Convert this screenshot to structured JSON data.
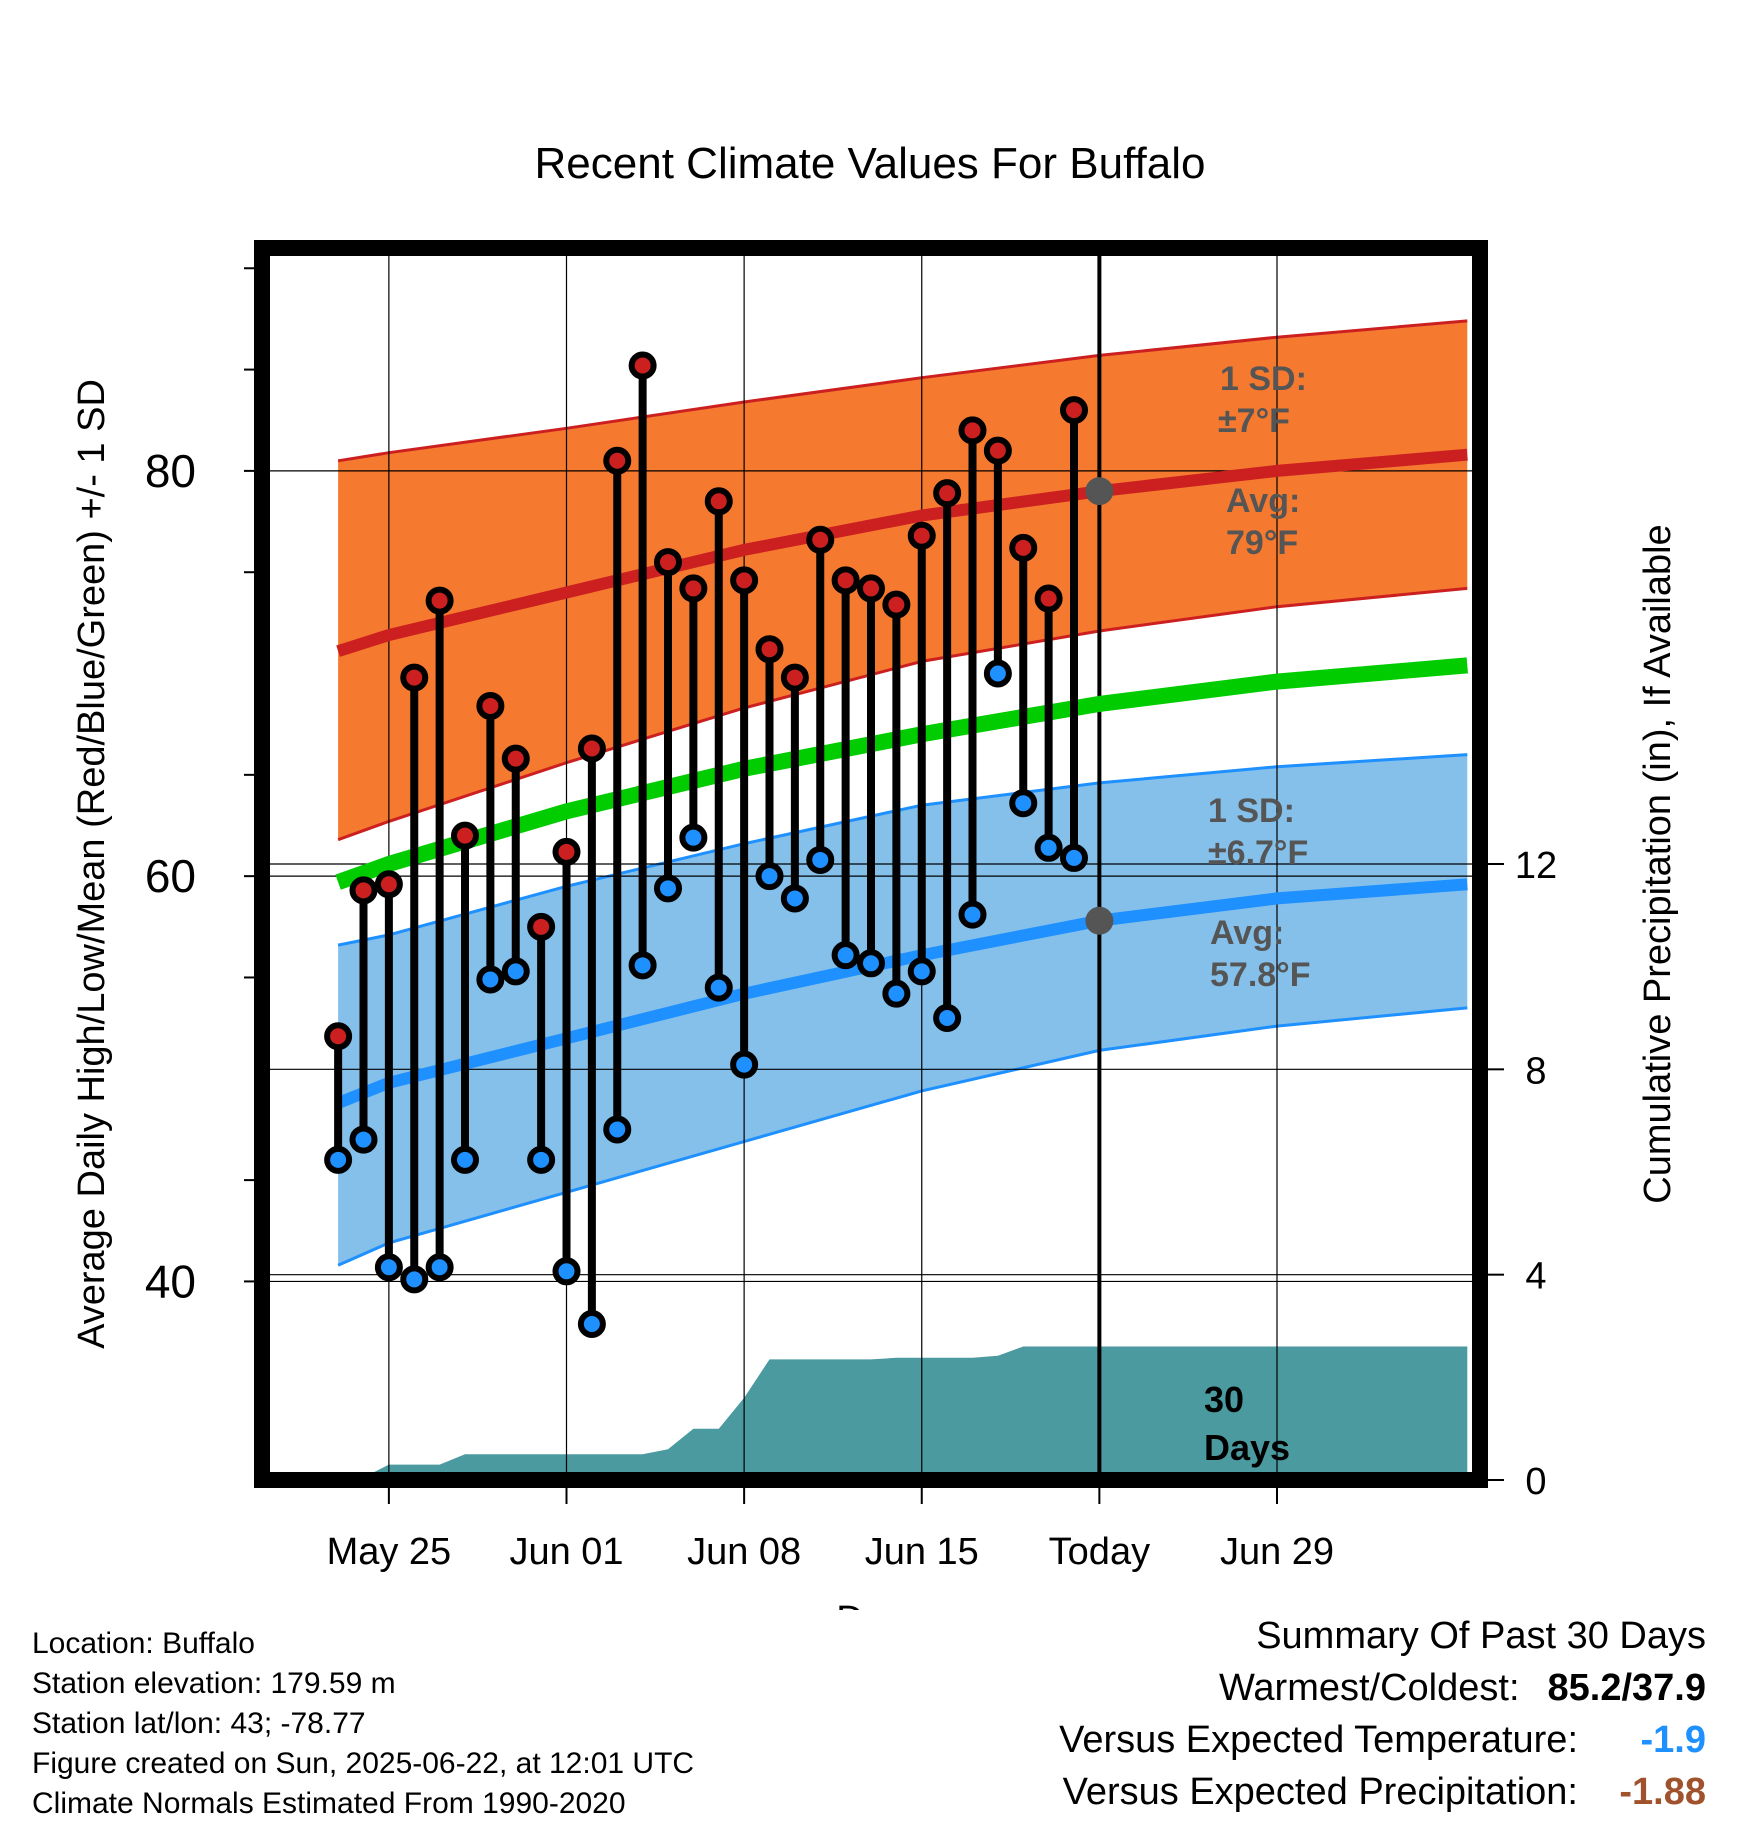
{
  "chart_data": {
    "type": "line",
    "title": "Recent Climate Values For Buffalo",
    "xlabel": "Day",
    "ylabel": "Average Daily High/Low/Mean (Red/Blue/Green) +/- 1 SD",
    "y2label": "Cumulative Precipitation (in), If Available",
    "x_range": [
      -5,
      43
    ],
    "ylim": [
      30.2,
      91
    ],
    "y2lim": [
      0,
      24.0
    ],
    "x_ticks": [
      {
        "day": 0,
        "label": "May 25"
      },
      {
        "day": 7,
        "label": "Jun 01"
      },
      {
        "day": 14,
        "label": "Jun 08"
      },
      {
        "day": 21,
        "label": "Jun 15"
      },
      {
        "day": 28,
        "label": "Today"
      },
      {
        "day": 35,
        "label": "Jun 29"
      }
    ],
    "y_ticks": [
      {
        "value": 40,
        "label": "40"
      },
      {
        "value": 60,
        "label": "60"
      },
      {
        "value": 80,
        "label": "80"
      }
    ],
    "y2_ticks": [
      {
        "value": 0,
        "label": "0"
      },
      {
        "value": 4,
        "label": "4"
      },
      {
        "value": 8,
        "label": "8"
      },
      {
        "value": 12,
        "label": "12"
      }
    ],
    "today_day": 28,
    "normals": {
      "days": [
        -2,
        0,
        7,
        14,
        21,
        28,
        35,
        42.5
      ],
      "avg_high": [
        71.1,
        71.9,
        74.0,
        76.1,
        77.8,
        79.0,
        80.0,
        80.8
      ],
      "avg_high_plus_sd": [
        80.5,
        80.9,
        82.1,
        83.4,
        84.6,
        85.7,
        86.6,
        87.4
      ],
      "avg_high_minus_sd": [
        61.8,
        62.7,
        65.6,
        68.3,
        70.6,
        72.1,
        73.3,
        74.2
      ],
      "avg_low": [
        48.8,
        49.8,
        52.0,
        54.2,
        56.1,
        57.8,
        58.9,
        59.6
      ],
      "avg_low_plus_sd": [
        56.6,
        57.1,
        59.5,
        61.6,
        63.5,
        64.6,
        65.4,
        66.0
      ],
      "avg_low_minus_sd": [
        40.8,
        41.9,
        44.4,
        46.9,
        49.4,
        51.4,
        52.6,
        53.5
      ],
      "avg_mean": [
        59.7,
        60.6,
        63.2,
        65.3,
        67.0,
        68.5,
        69.6,
        70.4
      ]
    },
    "series": [
      {
        "name": "Daily High",
        "days": [
          -2,
          -1,
          0,
          1,
          2,
          3,
          4,
          5,
          6,
          7,
          8,
          9,
          10,
          11,
          12,
          13,
          14,
          15,
          16,
          17,
          18,
          19,
          20,
          21,
          22,
          23,
          24,
          25,
          26,
          27
        ],
        "values": [
          52.1,
          59.3,
          59.6,
          69.8,
          73.6,
          62.0,
          68.4,
          65.8,
          57.5,
          61.2,
          66.3,
          80.5,
          85.2,
          75.5,
          74.2,
          78.5,
          74.6,
          71.2,
          69.8,
          76.6,
          74.6,
          74.2,
          73.4,
          76.8,
          78.9,
          82.0,
          81.0,
          76.2,
          73.7,
          83.0
        ]
      },
      {
        "name": "Daily Low",
        "days": [
          -2,
          -1,
          0,
          1,
          2,
          3,
          4,
          5,
          6,
          7,
          8,
          9,
          10,
          11,
          12,
          13,
          14,
          15,
          16,
          17,
          18,
          19,
          20,
          21,
          22,
          23,
          24,
          25,
          26,
          27
        ],
        "values": [
          46.0,
          47.0,
          40.7,
          40.1,
          40.7,
          46.0,
          54.9,
          55.3,
          46.0,
          40.5,
          37.9,
          47.5,
          55.6,
          59.4,
          61.9,
          54.5,
          50.7,
          60.0,
          58.9,
          60.8,
          56.1,
          55.7,
          54.2,
          55.3,
          53.0,
          58.1,
          70.0,
          63.6,
          61.4,
          60.9
        ]
      }
    ],
    "precip": {
      "days": [
        -2,
        -1,
        0,
        1,
        2,
        3,
        4,
        5,
        6,
        7,
        8,
        9,
        10,
        11,
        12,
        13,
        14,
        15,
        16,
        17,
        18,
        19,
        20,
        21,
        22,
        23,
        24,
        25,
        26,
        27,
        28,
        29,
        30,
        35,
        42.5
      ],
      "values": [
        0.0,
        0.05,
        0.3,
        0.3,
        0.3,
        0.5,
        0.5,
        0.5,
        0.5,
        0.5,
        0.5,
        0.5,
        0.5,
        0.6,
        1.0,
        1.0,
        1.6,
        2.35,
        2.35,
        2.35,
        2.35,
        2.35,
        2.38,
        2.38,
        2.38,
        2.38,
        2.42,
        2.6,
        2.6,
        2.6,
        2.6,
        2.6,
        2.6,
        2.6,
        2.6
      ]
    },
    "annotations": {
      "high_sd_label": "1 SD:",
      "high_sd_value": "±7°F",
      "high_avg_label": "Avg:",
      "high_avg_value": "79°F",
      "low_sd_label": "1 SD:",
      "low_sd_value": "±6.7°F",
      "low_avg_label": "Avg:",
      "low_avg_value": "57.8°F",
      "days_line1": "30",
      "days_line2": "Days"
    },
    "colors": {
      "high": "#cc2020",
      "low": "#1e90ff",
      "mean": "#00cc00",
      "high_band": "#f57a30",
      "low_band": "#84c0ea",
      "precip": "#4a9aa0",
      "label_gray": "#555555"
    }
  },
  "footer": {
    "location": "Location: Buffalo",
    "elevation": "Station elevation: 179.59 m",
    "latlon": "Station lat/lon: 43; -78.77",
    "created": "Figure created on Sun, 2025-06-22, at 12:01 UTC",
    "normals": "Climate Normals Estimated From 1990-2020"
  },
  "summary": {
    "title": "Summary Of Past 30 Days",
    "warm_cold_label": "Warmest/Coldest:",
    "warm_cold_value": "85.2/37.9",
    "temp_label": "Versus Expected Temperature:",
    "temp_value": "-1.9",
    "temp_color": "#1e90ff",
    "precip_label": "Versus Expected Precipitation:",
    "precip_value": "-1.88",
    "precip_color": "#a0522d"
  }
}
